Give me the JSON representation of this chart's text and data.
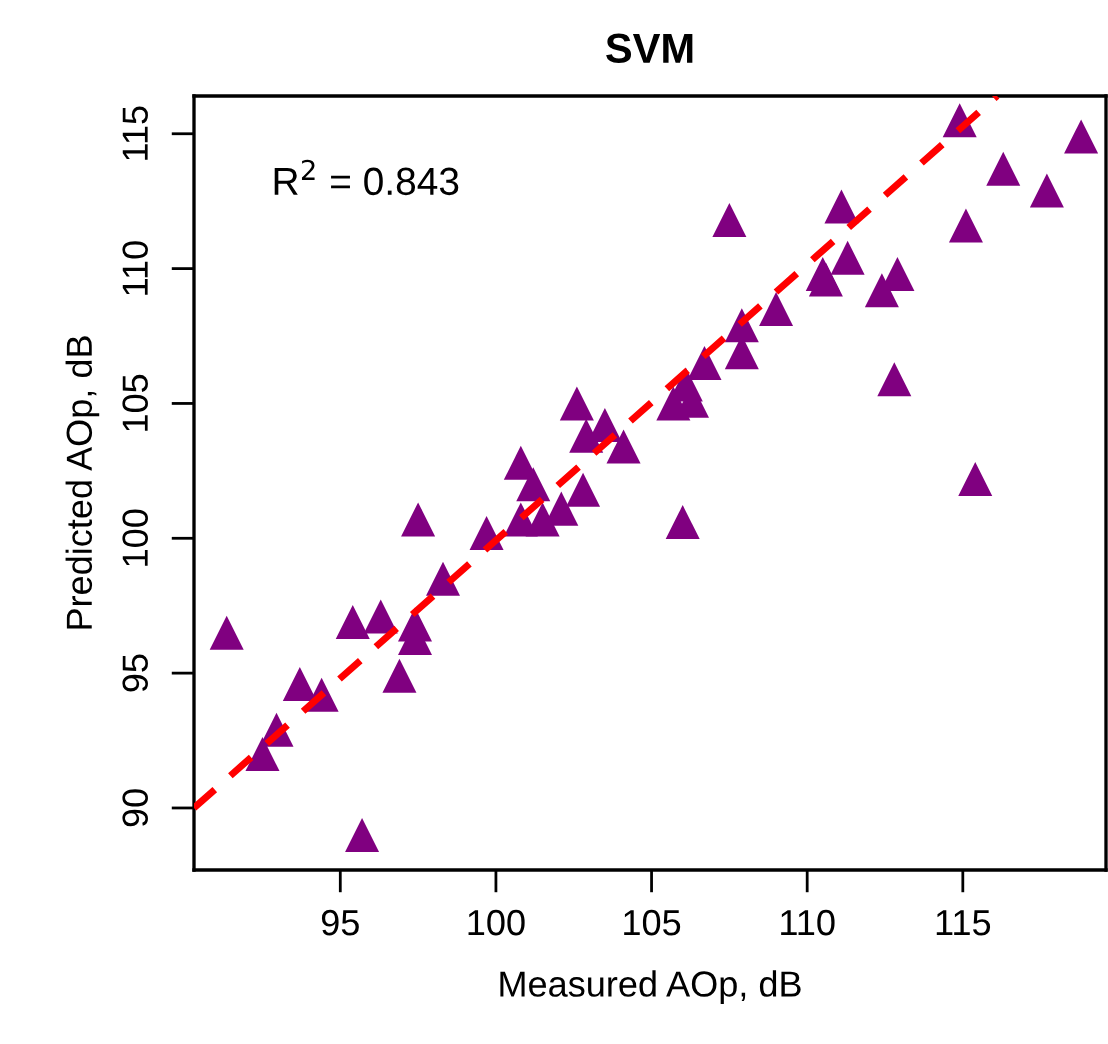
{
  "chart_data": {
    "type": "scatter",
    "title": "SVM",
    "xlabel": "Measured AOp, dB",
    "ylabel": "Predicted AOp, dB",
    "annotations": [
      "R$^{2}$ = 0.843"
    ],
    "xlim": [
      90.3,
      119.6
    ],
    "ylim": [
      87.7,
      116.4
    ],
    "xticks": [
      95,
      100,
      105,
      110,
      115
    ],
    "yticks": [
      90,
      95,
      100,
      105,
      110,
      115
    ],
    "grid": false,
    "marker": "triangle",
    "series": [
      {
        "color": "#800080",
        "x": [
          91.35,
          92.5,
          92.95,
          93.7,
          94.4,
          95.7,
          95.4,
          96.3,
          96.9,
          97.4,
          97.4,
          97.5,
          98.3,
          99.7,
          100.8,
          100.8,
          101.2,
          101.5,
          102.1,
          102.6,
          102.9,
          102.8,
          103.5,
          104.1,
          106.0,
          105.7,
          106.3,
          106.1,
          106.7,
          107.5,
          107.9,
          107.9,
          109.0,
          110.5,
          110.6,
          111.1,
          111.3,
          112.4,
          112.9,
          112.8,
          114.9,
          115.1,
          115.4,
          116.3,
          117.7,
          118.8
        ],
        "values": [
          96.5,
          92.0,
          92.9,
          94.6,
          94.2,
          89.0,
          96.9,
          97.1,
          94.9,
          96.8,
          96.3,
          100.7,
          98.5,
          100.2,
          102.8,
          100.7,
          102.0,
          100.7,
          101.1,
          105.0,
          103.8,
          101.8,
          104.2,
          103.4,
          100.6,
          105.0,
          105.1,
          105.7,
          106.5,
          111.8,
          106.9,
          107.9,
          108.5,
          109.8,
          109.6,
          112.3,
          110.4,
          109.2,
          109.8,
          105.9,
          115.5,
          111.6,
          102.2,
          113.7,
          112.9,
          114.9
        ]
      },
      {
        "type": "line",
        "color": "#ff0000",
        "line_style": "dashed",
        "marker": "none",
        "x": [
          90.3,
          116.1
        ],
        "values": [
          90.0,
          116.4
        ]
      }
    ]
  }
}
